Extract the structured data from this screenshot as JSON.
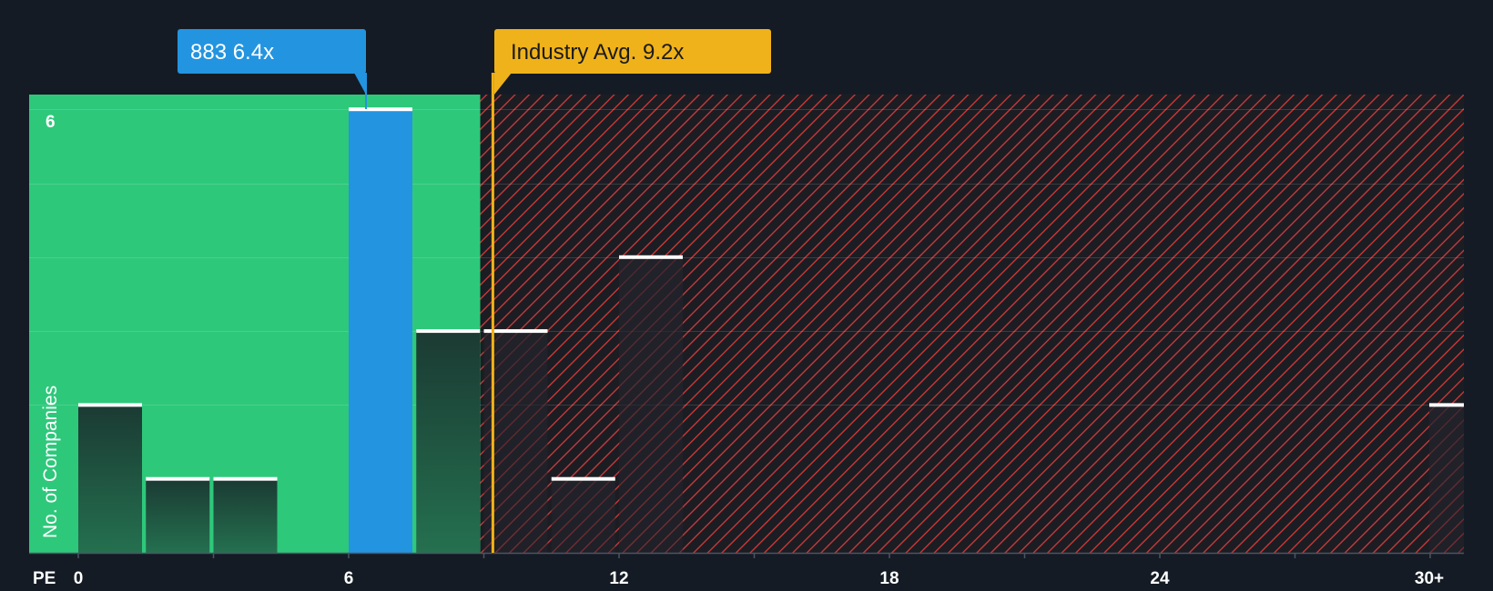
{
  "chart_data": {
    "type": "bar",
    "title": "",
    "xlabel": "PE",
    "ylabel": "No. of Companies",
    "x_ticks": [
      "0",
      "6",
      "12",
      "18",
      "24",
      "30+"
    ],
    "y_ticks": [
      "6"
    ],
    "xlim": [
      0,
      30
    ],
    "ylim": [
      0,
      6.2
    ],
    "bins": [
      {
        "from": 0,
        "to": 1.5,
        "count": 2
      },
      {
        "from": 1.5,
        "to": 3,
        "count": 1
      },
      {
        "from": 3,
        "to": 4.5,
        "count": 1
      },
      {
        "from": 6,
        "to": 7.5,
        "count": 6,
        "highlight": true
      },
      {
        "from": 7.5,
        "to": 9,
        "count": 3
      },
      {
        "from": 9,
        "to": 10.5,
        "count": 3
      },
      {
        "from": 10.5,
        "to": 12,
        "count": 1
      },
      {
        "from": 12,
        "to": 13.5,
        "count": 4
      },
      {
        "from": 30,
        "to": 31,
        "count": 2
      }
    ],
    "company": {
      "label": "883 6.4x",
      "value": 6.4
    },
    "industry": {
      "label": "Industry Avg. 9.2x",
      "value": 9.2
    },
    "fair_zone_max": 9
  },
  "colors": {
    "background": "#151b24",
    "fair": "#2ec87b",
    "expensive": "#ff4040",
    "company": "#2394e0",
    "industry": "#f0b21a"
  }
}
